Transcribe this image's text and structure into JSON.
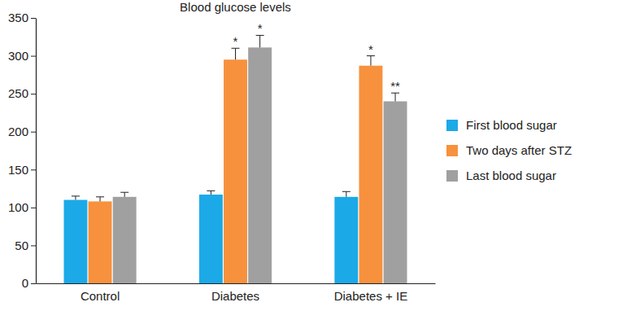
{
  "chart_data": {
    "type": "bar",
    "title": "Blood glucose levels",
    "categories": [
      "Control",
      "Diabetes",
      "Diabetes + IE"
    ],
    "series": [
      {
        "name": "First blood sugar",
        "color": "#1ba9e8",
        "values": [
          110,
          117,
          114
        ],
        "errors": [
          5,
          5,
          7
        ],
        "annotations": [
          null,
          null,
          null
        ]
      },
      {
        "name": "Two days after STZ",
        "color": "#f7913d",
        "values": [
          108,
          295,
          287
        ],
        "errors": [
          6,
          15,
          13
        ],
        "annotations": [
          null,
          "*",
          "*"
        ]
      },
      {
        "name": "Last blood sugar",
        "color": "#a0a0a0",
        "values": [
          114,
          311,
          240
        ],
        "errors": [
          6,
          16,
          11
        ],
        "annotations": [
          null,
          "*",
          "**"
        ]
      }
    ],
    "ylim": [
      0,
      350
    ],
    "yticks": [
      0,
      50,
      100,
      150,
      200,
      250,
      300,
      350
    ],
    "grid": false,
    "legend": "right"
  }
}
